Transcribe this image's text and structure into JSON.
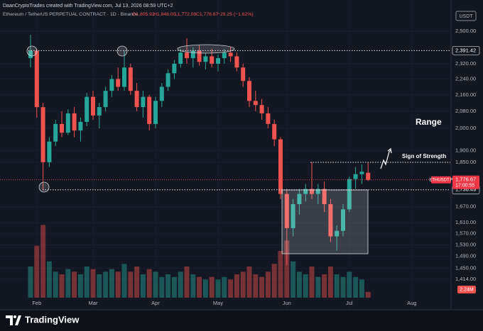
{
  "chart_data": {
    "type": "candlestick",
    "header": "DaanCryptoTrades created with TradingView.com, Jul 13, 2026 08:59 UTC+2",
    "symbol": "Ethereum / TetherUS PERPETUAL CONTRACT · 1D · Binance",
    "ohlc_labels": [
      "O1,805.92",
      "H1,848.00",
      "L1,772.00",
      "C1,776.67"
    ],
    "change_label": "−29.25 (−1.62%)",
    "currency": "USDT",
    "ticker": "ETHUSDT.P",
    "last_price": {
      "value": 1776.67,
      "label": "1,776.67"
    },
    "countdown": "17:00:55",
    "levels": [
      {
        "value": 2391.42,
        "label": "2,391.42"
      },
      {
        "value": 1736.49,
        "label": "1,736.49"
      }
    ],
    "annotations": [
      "Range",
      "Sign of Strength"
    ],
    "brand": "TradingView",
    "up_color": "#26a69a",
    "down_color": "#ef5350",
    "log_scale": true,
    "grid": true,
    "categories": [
      null,
      "Feb",
      null,
      null,
      null,
      null,
      null,
      null,
      null,
      null,
      "Mar",
      null,
      null,
      null,
      null,
      null,
      null,
      null,
      null,
      null,
      "Apr",
      null,
      null,
      null,
      null,
      null,
      null,
      null,
      null,
      null,
      "May",
      null,
      null,
      null,
      null,
      null,
      null,
      null,
      null,
      null,
      null,
      "Jun",
      null,
      null,
      null,
      null,
      null,
      null,
      null,
      null,
      null,
      "Jul",
      null,
      null,
      null,
      null,
      null,
      null,
      null,
      null,
      null,
      "Aug"
    ],
    "open": [
      2350,
      2390,
      2100,
      1850,
      1940,
      2020,
      1980,
      2070,
      1990,
      2030,
      2150,
      2060,
      2100,
      2180,
      2240,
      2200,
      2300,
      2180,
      2100,
      2150,
      2020,
      2130,
      2200,
      2270,
      2320,
      2380,
      2350,
      2390,
      2330,
      2360,
      2320,
      2350,
      2380,
      2360,
      2300,
      2230,
      2130,
      2110,
      2070,
      2020,
      1950,
      1720,
      1590,
      1680,
      1720,
      1740,
      1720,
      1740,
      1680,
      1560,
      1580,
      1660,
      1780,
      1800,
      1805.92,
      null,
      null,
      null,
      null,
      null,
      null,
      null
    ],
    "high": [
      2480,
      2400,
      2120,
      1960,
      2040,
      2080,
      2090,
      2100,
      2050,
      2170,
      2180,
      2120,
      2200,
      2260,
      2300,
      2391,
      2320,
      2220,
      2180,
      2160,
      2150,
      2220,
      2290,
      2340,
      2400,
      2460,
      2410,
      2420,
      2380,
      2400,
      2370,
      2400,
      2410,
      2380,
      2320,
      2250,
      2180,
      2140,
      2100,
      2040,
      1960,
      1740,
      1700,
      1740,
      1760,
      1850,
      1760,
      1770,
      1700,
      1600,
      1680,
      1790,
      1830,
      1840,
      1848,
      null,
      null,
      null,
      null,
      null,
      null,
      null
    ],
    "low": [
      2300,
      2050,
      1736,
      1830,
      1920,
      1960,
      1970,
      1960,
      1940,
      2010,
      2040,
      2000,
      2080,
      2150,
      2180,
      2180,
      2160,
      2080,
      2050,
      1990,
      2000,
      2100,
      2180,
      2240,
      2300,
      2320,
      2300,
      2310,
      2290,
      2300,
      2280,
      2320,
      2330,
      2280,
      2200,
      2100,
      2080,
      2040,
      2000,
      1920,
      1700,
      1460,
      1560,
      1640,
      1690,
      1700,
      1680,
      1650,
      1540,
      1510,
      1560,
      1650,
      1740,
      1760,
      1772,
      null,
      null,
      null,
      null,
      null,
      null,
      null
    ],
    "close": [
      2390,
      2100,
      1850,
      1940,
      2020,
      1980,
      2070,
      1990,
      2030,
      2150,
      2060,
      2100,
      2180,
      2240,
      2200,
      2300,
      2180,
      2100,
      2150,
      2020,
      2130,
      2200,
      2270,
      2320,
      2380,
      2350,
      2390,
      2330,
      2360,
      2320,
      2350,
      2380,
      2360,
      2300,
      2230,
      2130,
      2110,
      2070,
      2020,
      1950,
      1720,
      1590,
      1680,
      1720,
      1740,
      1720,
      1740,
      1680,
      1560,
      1580,
      1660,
      1780,
      1800,
      1810,
      1776.67,
      null,
      null,
      null,
      null,
      null,
      null,
      null
    ],
    "volume": [
      12000000,
      20000000,
      28000000,
      14000000,
      10000000,
      9000000,
      11000000,
      10000000,
      9000000,
      12000000,
      11000000,
      9000000,
      10000000,
      11000000,
      10000000,
      13000000,
      10000000,
      12000000,
      9000000,
      11000000,
      10000000,
      8000000,
      9000000,
      8000000,
      10000000,
      12000000,
      9000000,
      8000000,
      7000000,
      8000000,
      7000000,
      8000000,
      7000000,
      9000000,
      10000000,
      12000000,
      9000000,
      8000000,
      10000000,
      13000000,
      18000000,
      22000000,
      14000000,
      10000000,
      9000000,
      12000000,
      8000000,
      9000000,
      12000000,
      9000000,
      8000000,
      10000000,
      8000000,
      7000000,
      2240000,
      null,
      null,
      null,
      null,
      null,
      null,
      null
    ],
    "volume_value_labels": [
      null,
      null,
      null,
      null,
      null,
      null,
      null,
      null,
      null,
      null,
      null,
      null,
      null,
      null,
      null,
      null,
      null,
      null,
      null,
      null,
      null,
      null,
      null,
      null,
      null,
      null,
      null,
      null,
      null,
      null,
      null,
      null,
      null,
      null,
      null,
      null,
      null,
      null,
      null,
      null,
      null,
      null,
      null,
      null,
      null,
      null,
      null,
      null,
      null,
      null,
      null,
      null,
      null,
      null,
      "2.24M",
      null,
      null,
      null,
      null,
      null,
      null,
      null
    ],
    "volume_ylim": [
      0,
      30000000
    ],
    "ylim": [
      1355,
      2558
    ],
    "yticks": [
      {
        "value": 2500,
        "label": "2,500.00"
      },
      {
        "value": 2320,
        "label": "2,320.00"
      },
      {
        "value": 2240,
        "label": "2,240.00"
      },
      {
        "value": 2160,
        "label": "2,160.00"
      },
      {
        "value": 2080,
        "label": "2,080.00"
      },
      {
        "value": 2000,
        "label": "2,000.00"
      },
      {
        "value": 1900,
        "label": "1,900.00"
      },
      {
        "value": 1850,
        "label": "1,850.00"
      },
      {
        "value": 1670,
        "label": "1,670.00"
      },
      {
        "value": 1610,
        "label": "1,610.00"
      },
      {
        "value": 1570,
        "label": "1,570.00"
      },
      {
        "value": 1530,
        "label": "1,530.00"
      },
      {
        "value": 1490,
        "label": "1,490.00"
      },
      {
        "value": 1450,
        "label": "1,450.00"
      },
      {
        "value": 1414,
        "label": "1,414.00"
      }
    ]
  }
}
